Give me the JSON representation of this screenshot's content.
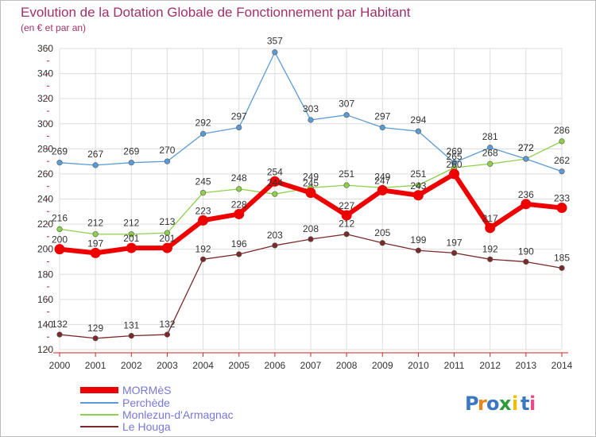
{
  "chart_data": {
    "type": "line",
    "title": "Evolution de la Dotation Globale de Fonctionnement par Habitant",
    "subtitle": "(en € et par an)",
    "x": [
      "2000",
      "2001",
      "2002",
      "2003",
      "2004",
      "2005",
      "2006",
      "2007",
      "2008",
      "2009",
      "2010",
      "2011",
      "2012",
      "2013",
      "2014"
    ],
    "ylim": [
      120,
      360
    ],
    "yticks": [
      120,
      140,
      160,
      180,
      200,
      220,
      240,
      260,
      280,
      300,
      320,
      340,
      360
    ],
    "grid": true,
    "legend_position": "bottom-left",
    "series": [
      {
        "name": "MORMèS",
        "color": "#ee0000",
        "values": [
          200,
          197,
          201,
          201,
          223,
          228,
          254,
          245,
          227,
          247,
          243,
          260,
          217,
          236,
          233
        ]
      },
      {
        "name": "Perchède",
        "color": "#5b9bd5",
        "values": [
          269,
          267,
          269,
          270,
          292,
          297,
          357,
          303,
          307,
          297,
          294,
          269,
          281,
          272,
          262
        ]
      },
      {
        "name": "Monlezun-d'Armagnac",
        "color": "#8ed04a",
        "values": [
          216,
          212,
          212,
          213,
          245,
          248,
          244,
          249,
          251,
          249,
          251,
          265,
          268,
          272,
          286
        ]
      },
      {
        "name": "Le Houga",
        "color": "#7a2a2a",
        "values": [
          132,
          129,
          131,
          132,
          192,
          196,
          203,
          208,
          212,
          205,
          199,
          197,
          192,
          190,
          185
        ]
      }
    ]
  },
  "brand": {
    "letters": [
      "P",
      "r",
      "o",
      "x",
      "i",
      "t",
      "i"
    ],
    "colors": [
      "#3b78c4",
      "#e8871e",
      "#3b78c4",
      "#2f9a3c",
      "#f0c000",
      "#3b78c4",
      "#e84a8a"
    ]
  }
}
